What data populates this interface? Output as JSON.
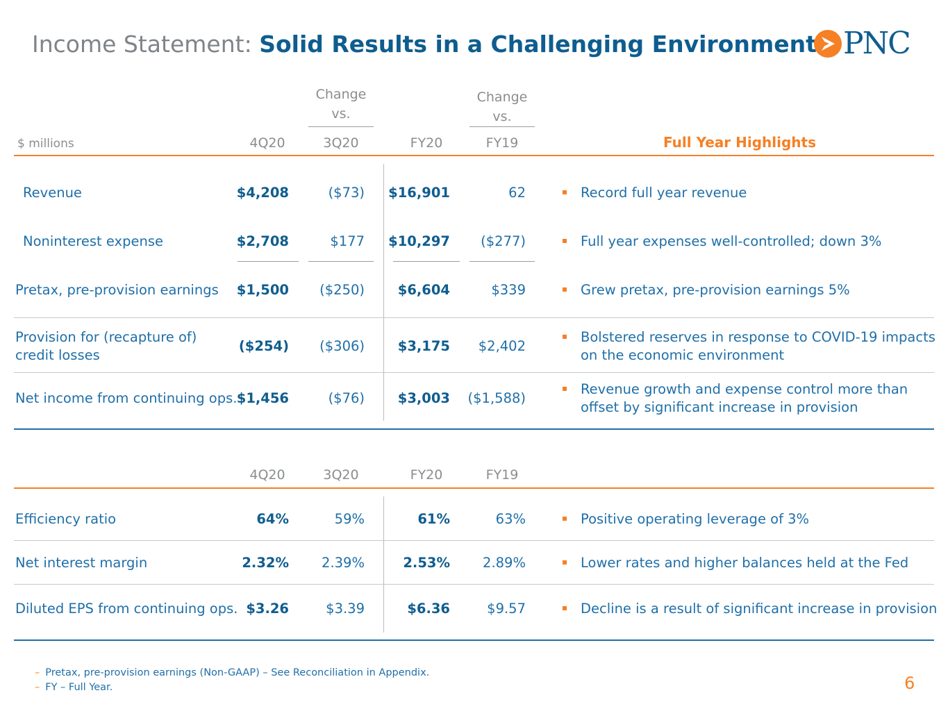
{
  "title": {
    "prefix": "Income Statement: ",
    "main": "Solid Results in a Challenging Environment"
  },
  "logo": {
    "text": "PNC"
  },
  "table1": {
    "header": {
      "units": "$ millions",
      "col1": "4Q20",
      "change1_line1": "Change",
      "change1_line2": "vs.",
      "col2": "3Q20",
      "col3": "FY20",
      "change2_line1": "Change",
      "change2_line2": "vs.",
      "col4": "FY19",
      "highlights": "Full Year Highlights"
    },
    "rows": [
      {
        "label": "Revenue",
        "q4": "$4,208",
        "chg_q": "($73)",
        "fy20": "$16,901",
        "chg_fy": "62",
        "note": "Record full year revenue"
      },
      {
        "label": "Noninterest expense",
        "q4": "$2,708",
        "chg_q": "$177",
        "fy20": "$10,297",
        "chg_fy": "($277)",
        "note": "Full year expenses well-controlled; down 3%"
      },
      {
        "label": "Pretax, pre-provision earnings",
        "q4": "$1,500",
        "chg_q": "($250)",
        "fy20": "$6,604",
        "chg_fy": "$339",
        "note": "Grew pretax, pre-provision earnings 5%"
      },
      {
        "label_line1": "Provision for (recapture of)",
        "label_line2": "credit losses",
        "q4": "($254)",
        "chg_q": "($306)",
        "fy20": "$3,175",
        "chg_fy": "$2,402",
        "note_line1": "Bolstered reserves in response to COVID-19 impacts",
        "note_line2": "on the economic environment"
      },
      {
        "label": "Net income from continuing ops.",
        "q4": "$1,456",
        "chg_q": "($76)",
        "fy20": "$3,003",
        "chg_fy": "($1,588)",
        "note_line1": "Revenue growth and expense control more than",
        "note_line2": "offset by significant increase in provision"
      }
    ]
  },
  "table2": {
    "header": {
      "col1": "4Q20",
      "col2": "3Q20",
      "col3": "FY20",
      "col4": "FY19"
    },
    "rows": [
      {
        "label": "Efficiency ratio",
        "q4": "64%",
        "q3": "59%",
        "fy20": "61%",
        "fy19": "63%",
        "note": "Positive operating leverage of 3%"
      },
      {
        "label": "Net interest margin",
        "q4": "2.32%",
        "q3": "2.39%",
        "fy20": "2.53%",
        "fy19": "2.89%",
        "note": "Lower rates and higher balances held at the Fed"
      },
      {
        "label": "Diluted EPS from continuing ops.",
        "q4": "$3.26",
        "q3": "$3.39",
        "fy20": "$6.36",
        "fy19": "$9.57",
        "note": "Decline is a result of significant increase in provision"
      }
    ]
  },
  "footnotes": {
    "dash": "–",
    "items": [
      "Pretax, pre-provision earnings (Non-GAAP) – See Reconciliation in Appendix.",
      "FY – Full Year."
    ]
  },
  "page_number": "6",
  "colors": {
    "orange": "#f58025",
    "blue": "#1f6fa8",
    "dark_blue": "#0f5d8f",
    "gray": "#808488"
  }
}
